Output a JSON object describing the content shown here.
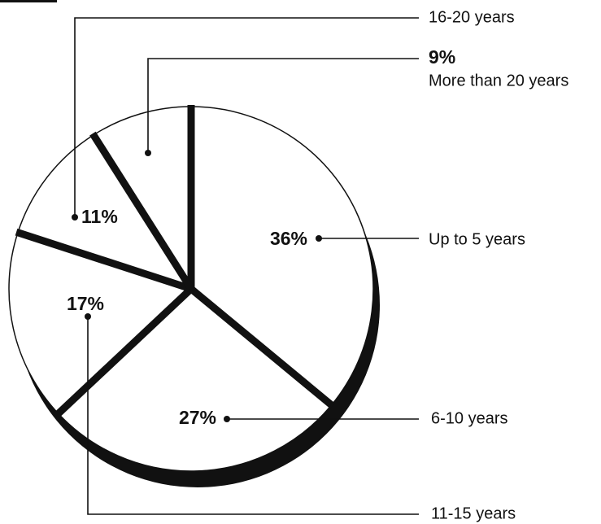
{
  "chart_data": {
    "type": "pie",
    "categories": [
      "Up to 5 years",
      "6-10 years",
      "11-15 years",
      "16-20 years",
      "More than 20 years"
    ],
    "values": [
      36,
      27,
      17,
      11,
      9
    ],
    "value_labels": [
      "36%",
      "27%",
      "17%",
      "11%",
      "9%"
    ],
    "color": "#ffffff"
  }
}
